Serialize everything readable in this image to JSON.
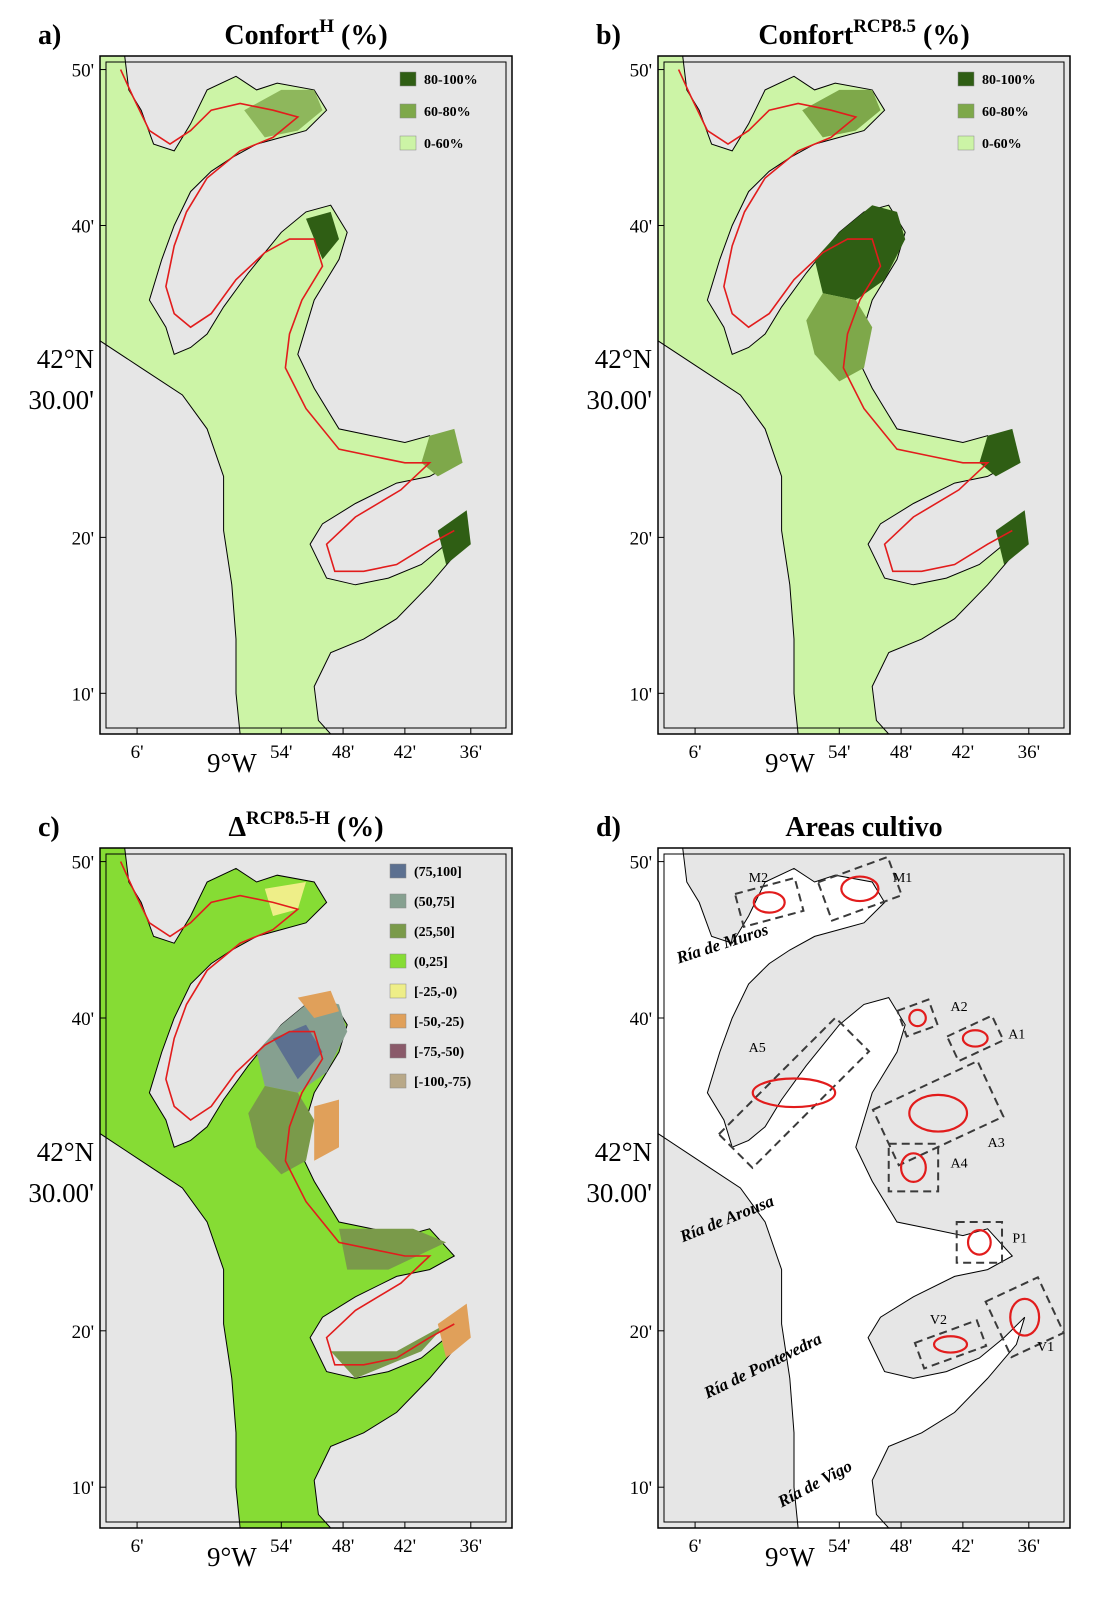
{
  "panels": [
    {
      "id": "a",
      "label": "a)",
      "title": "Confort",
      "title_sup": "H",
      "title_suffix": " (%)",
      "legend": [
        {
          "label": "80-100%",
          "color": "#2f5e14"
        },
        {
          "label": "60-80%",
          "color": "#7ea84a"
        },
        {
          "label": "0-60%",
          "color": "#ccf4a6"
        }
      ]
    },
    {
      "id": "b",
      "label": "b)",
      "title": "Confort",
      "title_sup": "RCP8.5",
      "title_suffix": " (%)",
      "legend": [
        {
          "label": "80-100%",
          "color": "#2f5e14"
        },
        {
          "label": "60-80%",
          "color": "#7ea84a"
        },
        {
          "label": "0-60%",
          "color": "#ccf4a6"
        }
      ]
    },
    {
      "id": "c",
      "label": "c)",
      "title": "Δ",
      "title_sup": "RCP8.5-H",
      "title_suffix": " (%)",
      "legend": [
        {
          "label": "(75,100]",
          "color": "#5c7090"
        },
        {
          "label": "(50,75]",
          "color": "#86a090"
        },
        {
          "label": "(25,50]",
          "color": "#7a9a4a"
        },
        {
          "label": "(0,25]",
          "color": "#86dc34"
        },
        {
          "label": "[-25,-0)",
          "color": "#eeee88"
        },
        {
          "label": "[-50,-25)",
          "color": "#e0a05a"
        },
        {
          "label": "[-75,-50)",
          "color": "#8a5a6a"
        },
        {
          "label": "[-100,-75)",
          "color": "#b8a888"
        }
      ]
    },
    {
      "id": "d",
      "label": "d)",
      "title": "Areas cultivo",
      "title_sup": "",
      "title_suffix": "",
      "legend": []
    }
  ],
  "axes": {
    "y_ticks": [
      "50'",
      "40'",
      "20'",
      "10'"
    ],
    "y_center_line1": "42°N",
    "y_center_line2": "30.00'",
    "x_ticks": [
      "6'",
      "54'",
      "48'",
      "42'",
      "36'"
    ],
    "x_center": "9°W"
  },
  "rias": [
    "Ría de Muros",
    "Ría de Arousa",
    "Ría de Pontevedra",
    "Ría de Vigo"
  ],
  "areas": [
    "M1",
    "M2",
    "A1",
    "A2",
    "A3",
    "A4",
    "A5",
    "P1",
    "V1",
    "V2"
  ],
  "colors": {
    "land": "#e6e6e6",
    "contour": "#e21c1c",
    "coast": "#000000",
    "box": "#3a3a3a"
  }
}
